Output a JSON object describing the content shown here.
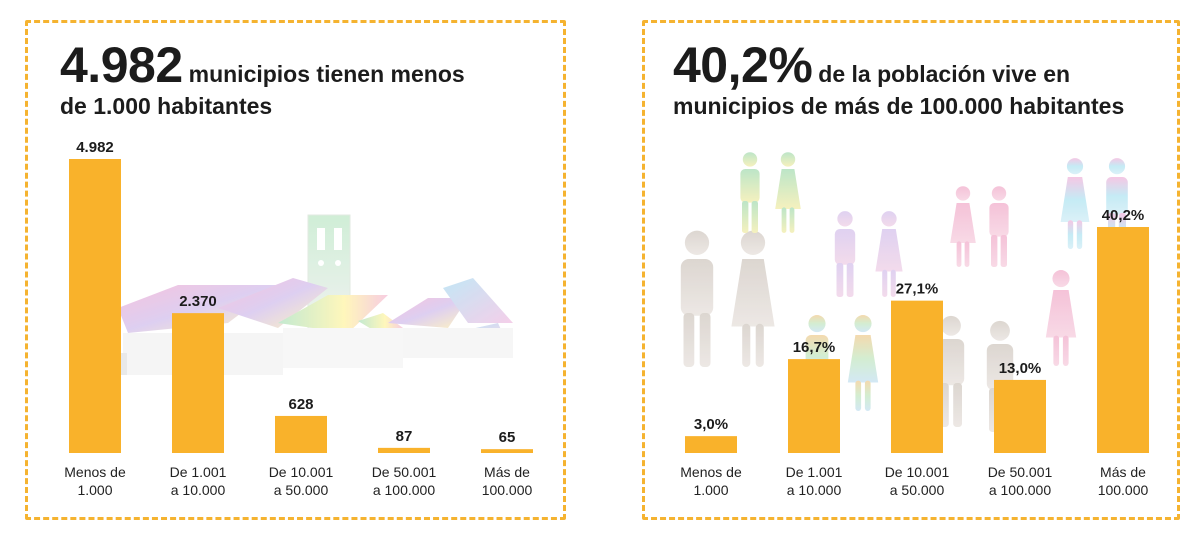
{
  "colors": {
    "bar": "#f9b22b",
    "border": "#f5b330",
    "text": "#1c1c1c"
  },
  "left_panel": {
    "headline_number": "4.982",
    "headline_line1": "municipios tienen menos",
    "headline_line2": "de 1.000 habitantes",
    "decoration": "village-houses-illustration"
  },
  "right_panel": {
    "headline_number": "40,2%",
    "headline_line1": "de la población vive en",
    "headline_line2": "municipios de más de 100.000 habitantes",
    "decoration": "people-silhouettes-illustration"
  },
  "chart_data": [
    {
      "type": "bar",
      "categories": [
        [
          "Menos de",
          "1.000"
        ],
        [
          "De 1.001",
          "a 10.000"
        ],
        [
          "De 10.001",
          "a 50.000"
        ],
        [
          "De 50.001",
          "a 100.000"
        ],
        [
          "Más de",
          "100.000"
        ]
      ],
      "values": [
        4982,
        2370,
        628,
        87,
        65
      ],
      "value_labels": [
        "4.982",
        "2.370",
        "628",
        "87",
        "65"
      ],
      "ylim": [
        0,
        4982
      ]
    },
    {
      "type": "bar",
      "categories": [
        [
          "Menos de",
          "1.000"
        ],
        [
          "De 1.001",
          "a 10.000"
        ],
        [
          "De 10.001",
          "a 50.000"
        ],
        [
          "De 50.001",
          "a 100.000"
        ],
        [
          "Más de",
          "100.000"
        ]
      ],
      "values": [
        3.0,
        16.7,
        27.1,
        13.0,
        40.2
      ],
      "value_labels": [
        "3,0%",
        "16,7%",
        "27,1%",
        "13,0%",
        "40,2%"
      ],
      "ylim": [
        0,
        40.2
      ]
    }
  ]
}
